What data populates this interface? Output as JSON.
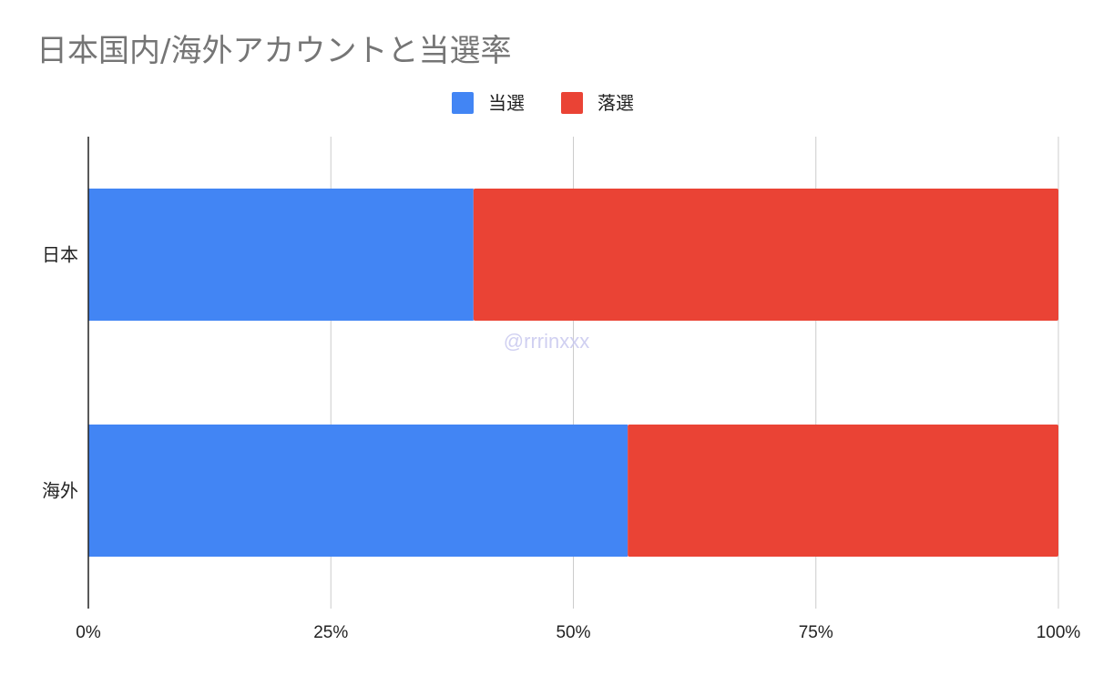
{
  "chart_data": {
    "type": "bar",
    "orientation": "horizontal",
    "stacked": "percent",
    "title": "日本国内/海外アカウントと当選率",
    "categories": [
      "日本",
      "海外"
    ],
    "series": [
      {
        "name": "当選",
        "values": [
          39.7,
          55.6
        ],
        "color": "#4285f4"
      },
      {
        "name": "落選",
        "values": [
          60.3,
          44.4
        ],
        "color": "#ea4335"
      }
    ],
    "xlim": [
      0,
      100
    ],
    "x_ticks": [
      0,
      25,
      50,
      75,
      100
    ],
    "x_tick_labels": [
      "0%",
      "25%",
      "50%",
      "75%",
      "100%"
    ],
    "grid": "vertical",
    "legend": "top-center",
    "watermark": "@rrrinxxx"
  }
}
